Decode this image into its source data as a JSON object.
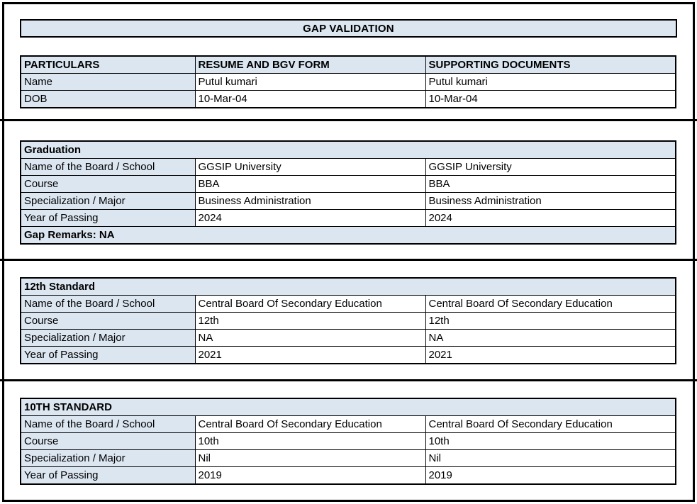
{
  "page": {
    "title": "GAP VALIDATION"
  },
  "colors": {
    "section_fill": "#dce6f1",
    "border": "#000000",
    "background": "#ffffff"
  },
  "main_table": {
    "headers": [
      "PARTICULARS",
      "RESUME AND BGV FORM",
      "SUPPORTING DOCUMENTS"
    ],
    "rows": [
      {
        "label": "Name",
        "resume": "Putul kumari",
        "supporting": "Putul kumari"
      },
      {
        "label": "DOB",
        "resume": "10-Mar-04",
        "supporting": "10-Mar-04"
      }
    ]
  },
  "sections": [
    {
      "title": "Graduation",
      "rows": [
        {
          "label": "Name of the Board / School",
          "resume": "GGSIP University",
          "supporting": "GGSIP University"
        },
        {
          "label": "Course",
          "resume": "BBA",
          "supporting": "BBA"
        },
        {
          "label": "Specialization / Major",
          "resume": "Business Administration",
          "supporting": "Business Administration"
        },
        {
          "label": "Year of Passing",
          "resume": "2024",
          "supporting": "2024"
        }
      ],
      "gap_remarks": "Gap Remarks: NA"
    },
    {
      "title": "12th Standard",
      "rows": [
        {
          "label": "Name of the Board / School",
          "resume": "Central Board Of Secondary Education",
          "supporting": "Central Board Of Secondary Education"
        },
        {
          "label": "Course",
          "resume": "12th",
          "supporting": "12th"
        },
        {
          "label": "Specialization / Major",
          "resume": "NA",
          "supporting": "NA"
        },
        {
          "label": "Year of Passing",
          "resume": "2021",
          "supporting": "2021"
        }
      ]
    },
    {
      "title": "10TH STANDARD",
      "rows": [
        {
          "label": "Name of the Board / School",
          "resume": "Central Board Of Secondary Education",
          "supporting": "Central Board Of Secondary Education"
        },
        {
          "label": "Course",
          "resume": "10th",
          "supporting": "10th"
        },
        {
          "label": "Specialization / Major",
          "resume": "Nil",
          "supporting": "Nil"
        },
        {
          "label": "Year of Passing",
          "resume": "2019",
          "supporting": "2019"
        }
      ]
    }
  ]
}
